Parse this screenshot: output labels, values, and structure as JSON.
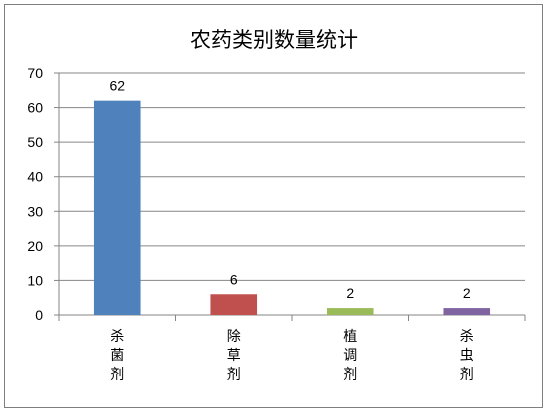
{
  "chart_data": {
    "type": "bar",
    "title": "农药类别数量统计",
    "categories": [
      "杀菌剂",
      "除草剂",
      "植调剂",
      "杀虫剂"
    ],
    "values": [
      62,
      6,
      2,
      2
    ],
    "colors": [
      "#4f81bd",
      "#c0504d",
      "#9bbb59",
      "#8064a2"
    ],
    "ylim": [
      0,
      70
    ],
    "yticks": [
      0,
      10,
      20,
      30,
      40,
      50,
      60,
      70
    ],
    "grid": true,
    "data_labels": true,
    "xlabel": "",
    "ylabel": ""
  }
}
